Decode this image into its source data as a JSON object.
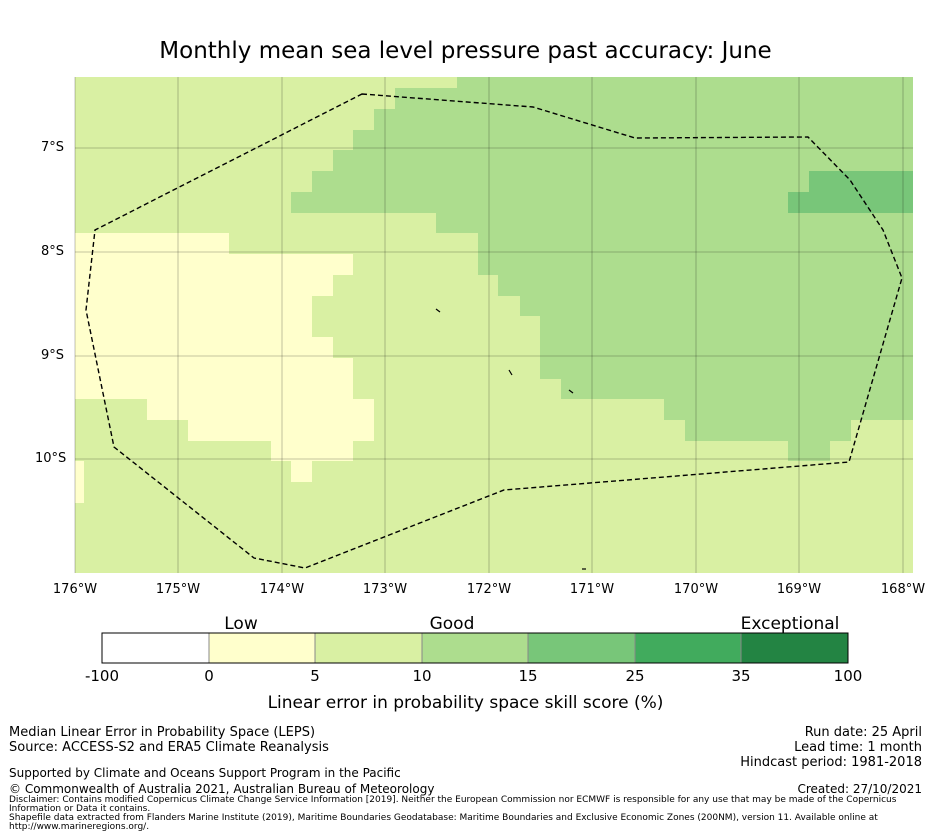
{
  "title": "Monthly mean sea level pressure past accuracy: June",
  "map": {
    "lat_labels": [
      "7°S",
      "8°S",
      "9°S",
      "10°S"
    ],
    "lon_labels": [
      "176°W",
      "175°W",
      "174°W",
      "173°W",
      "172°W",
      "171°W",
      "170°W",
      "169°W",
      "168°W"
    ],
    "extent": {
      "lon_min": -176,
      "lon_max": -167.9,
      "lat_top": -6.3,
      "lat_bottom": -11.1
    },
    "grid": "on",
    "boundary": "dashed EEZ outline"
  },
  "colorbar": {
    "category_labels": [
      {
        "text": "Low"
      },
      {
        "text": "Good"
      },
      {
        "text": "Exceptional"
      }
    ],
    "ticks": [
      "-100",
      "0",
      "5",
      "10",
      "15",
      "25",
      "35",
      "100"
    ],
    "colors": [
      "#ffffff",
      "#ffffcc",
      "#d9f0a3",
      "#addd8e",
      "#78c679",
      "#41ab5d",
      "#238443"
    ],
    "title": "Linear error in probability space skill score (%)"
  },
  "footer": {
    "left_line1": "Median Linear Error in Probability Space (LEPS)",
    "left_line2": "Source: ACCESS-S2 and ERA5 Climate Reanalysis",
    "support": "Supported by Climate and Oceans Support Program in the Pacific",
    "copyright": "© Commonwealth of Australia 2021, Australian Bureau of Meteorology",
    "disclaimer": "Disclaimer: Contains modified Copernicus Climate Change Service Information [2019]. Neither the European Commission nor ECMWF is responsible for any use that may be made of the Copernicus Information or Data it contains.",
    "shapefile": "Shapefile data extracted from Flanders Marine Institute (2019), Maritime Boundaries Geodatabase: Maritime Boundaries and Exclusive Economic Zones (200NM), version 11. Available online at http://www.marineregions.org/.",
    "run_date": "Run date: 25 April",
    "lead_time": "Lead time: 1 month",
    "hindcast": "Hindcast period: 1981-2018",
    "created": "Created: 27/10/2021"
  }
}
